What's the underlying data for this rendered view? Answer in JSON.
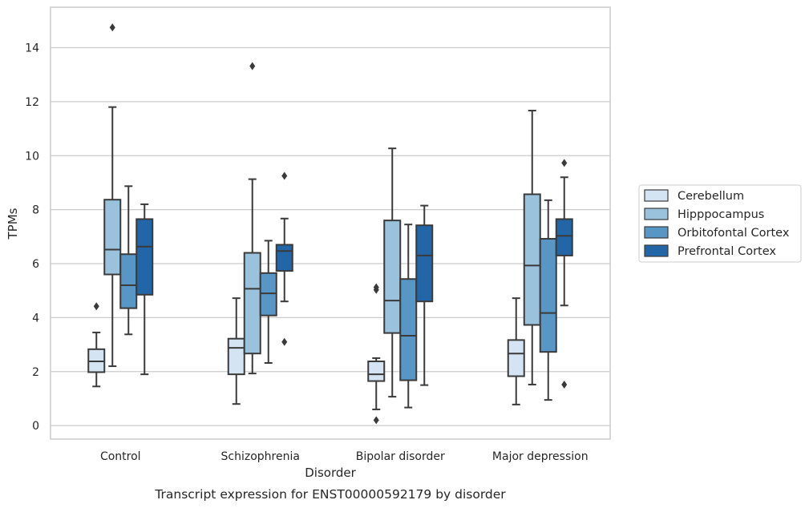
{
  "chart_data": {
    "type": "box",
    "xlabel": "Disorder",
    "ylabel": "TPMs",
    "caption": "Transcript expression for ENST00000592179 by disorder",
    "ylim": [
      -0.5,
      15.5
    ],
    "yticks": [
      0,
      2,
      4,
      6,
      8,
      10,
      12,
      14
    ],
    "grid": "horizontal",
    "legend_position": "right",
    "categories": [
      "Control",
      "Schizophrenia",
      "Bipolar disorder",
      "Major depression"
    ],
    "series": [
      {
        "name": "Cerebellum",
        "color": "#d5e4f2",
        "boxes": [
          {
            "whisker_low": 1.45,
            "q1": 1.98,
            "median": 2.38,
            "q3": 2.83,
            "whisker_high": 3.45,
            "outliers": [
              4.42
            ]
          },
          {
            "whisker_low": 0.8,
            "q1": 1.9,
            "median": 2.88,
            "q3": 3.22,
            "whisker_high": 4.72,
            "outliers": []
          },
          {
            "whisker_low": 0.6,
            "q1": 1.65,
            "median": 1.9,
            "q3": 2.38,
            "whisker_high": 2.5,
            "outliers": [
              5.03,
              5.12,
              0.2
            ]
          },
          {
            "whisker_low": 0.78,
            "q1": 1.83,
            "median": 2.67,
            "q3": 3.17,
            "whisker_high": 4.72,
            "outliers": []
          }
        ]
      },
      {
        "name": "Hipppocampus",
        "color": "#9bc2dc",
        "boxes": [
          {
            "whisker_low": 2.2,
            "q1": 5.6,
            "median": 6.52,
            "q3": 8.37,
            "whisker_high": 11.8,
            "outliers": [
              14.75
            ]
          },
          {
            "whisker_low": 1.93,
            "q1": 2.67,
            "median": 5.07,
            "q3": 6.4,
            "whisker_high": 9.13,
            "outliers": [
              13.32
            ]
          },
          {
            "whisker_low": 1.07,
            "q1": 3.43,
            "median": 4.63,
            "q3": 7.6,
            "whisker_high": 10.27,
            "outliers": []
          },
          {
            "whisker_low": 1.52,
            "q1": 3.73,
            "median": 5.93,
            "q3": 8.57,
            "whisker_high": 11.67,
            "outliers": []
          }
        ]
      },
      {
        "name": "Orbitofontal Cortex",
        "color": "#5896c5",
        "boxes": [
          {
            "whisker_low": 3.38,
            "q1": 4.35,
            "median": 5.2,
            "q3": 6.35,
            "whisker_high": 8.87,
            "outliers": []
          },
          {
            "whisker_low": 2.32,
            "q1": 4.08,
            "median": 4.9,
            "q3": 5.65,
            "whisker_high": 6.85,
            "outliers": []
          },
          {
            "whisker_low": 0.67,
            "q1": 1.68,
            "median": 3.33,
            "q3": 5.43,
            "whisker_high": 7.45,
            "outliers": []
          },
          {
            "whisker_low": 0.95,
            "q1": 2.73,
            "median": 4.17,
            "q3": 6.92,
            "whisker_high": 8.35,
            "outliers": []
          }
        ]
      },
      {
        "name": "Prefrontal Cortex",
        "color": "#2366a8",
        "boxes": [
          {
            "whisker_low": 1.9,
            "q1": 4.85,
            "median": 6.63,
            "q3": 7.65,
            "whisker_high": 8.2,
            "outliers": []
          },
          {
            "whisker_low": 4.6,
            "q1": 5.73,
            "median": 6.47,
            "q3": 6.7,
            "whisker_high": 7.67,
            "outliers": [
              9.25,
              3.1
            ]
          },
          {
            "whisker_low": 1.5,
            "q1": 4.6,
            "median": 6.3,
            "q3": 7.42,
            "whisker_high": 8.15,
            "outliers": []
          },
          {
            "whisker_low": 4.45,
            "q1": 6.3,
            "median": 7.03,
            "q3": 7.65,
            "whisker_high": 9.2,
            "outliers": [
              9.73,
              1.52
            ]
          }
        ]
      }
    ]
  }
}
